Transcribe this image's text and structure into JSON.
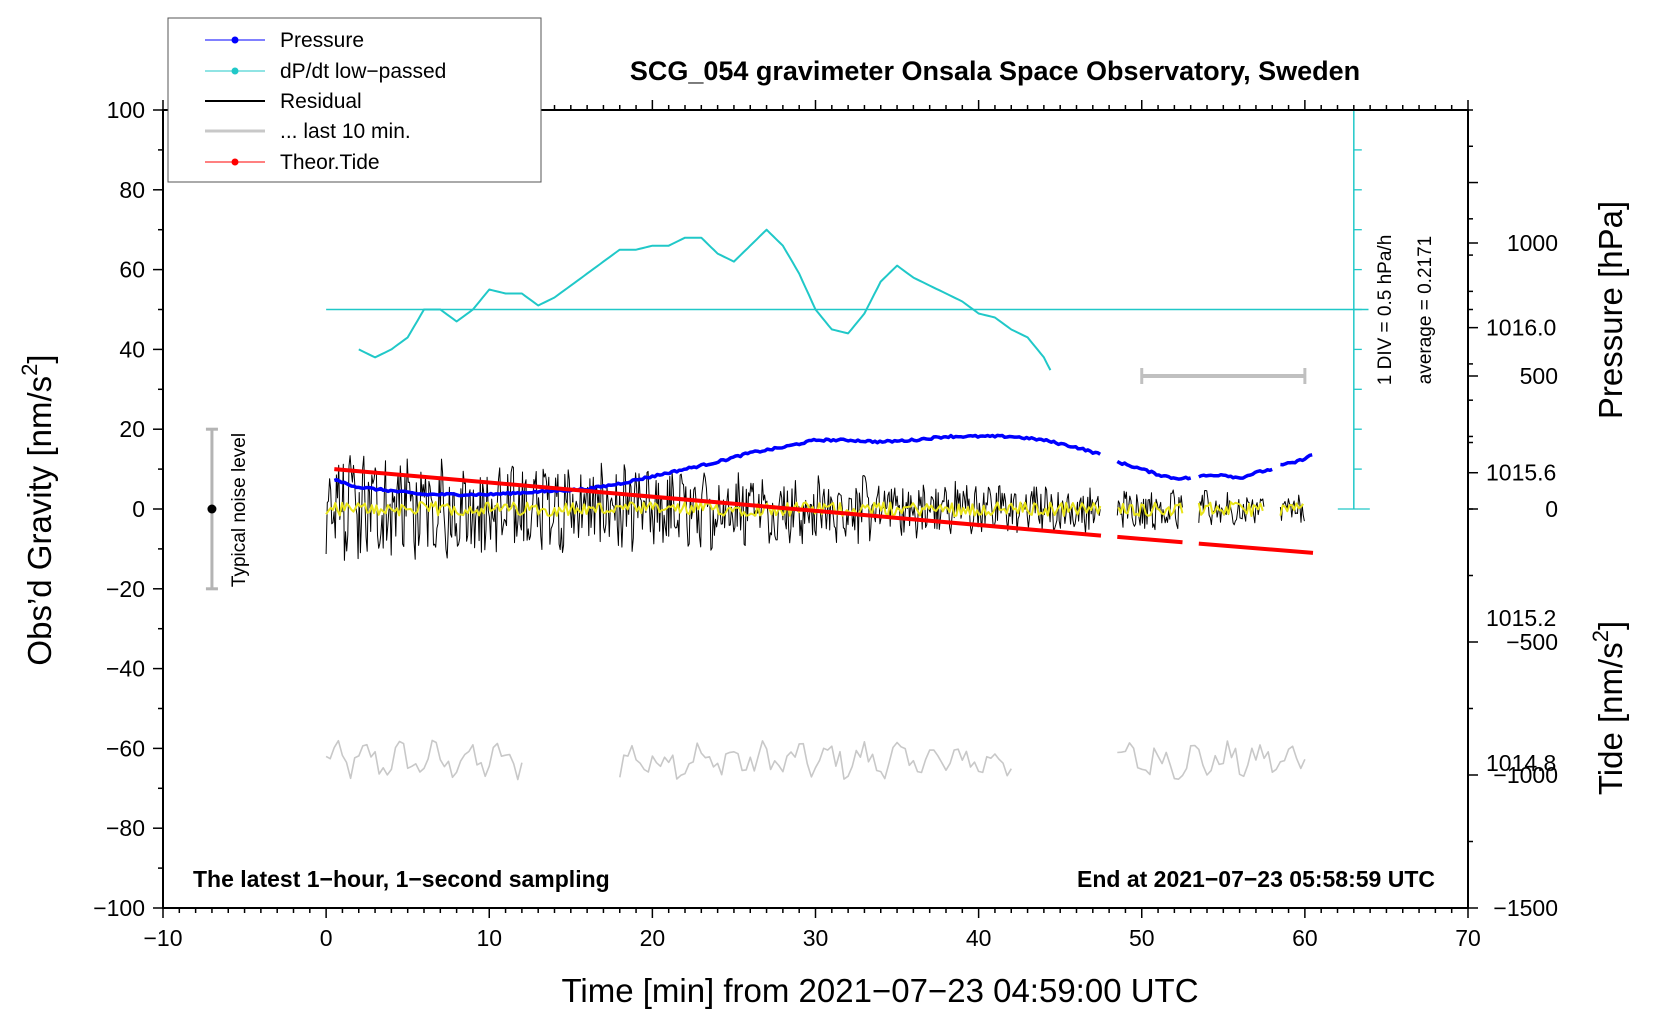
{
  "chart_data": {
    "type": "line",
    "title": "SCG_054 gravimeter Onsala Space Observatory, Sweden",
    "xlabel": "Time [min] from 2021−07−23 04:59:00 UTC",
    "ylabel": "Obs’d Gravity [nm/s",
    "ylabel_sup": "2",
    "ylabel_close": "]",
    "y2label": "Pressure [hPa]",
    "y3label": "Tide [nm/s",
    "y3label_sup": "2",
    "y3label_close": "]",
    "xlim": [
      -10,
      70
    ],
    "ylim": [
      -100,
      100
    ],
    "pressure_lim": [
      1014.4,
      1016.6
    ],
    "tide_lim": [
      -1500,
      1500
    ],
    "x_ticks": [
      -10,
      0,
      10,
      20,
      30,
      40,
      50,
      60,
      70
    ],
    "x_tick_labels": [
      "−10",
      "0",
      "10",
      "20",
      "30",
      "40",
      "50",
      "60",
      "70"
    ],
    "y_ticks": [
      -100,
      -80,
      -60,
      -40,
      -20,
      0,
      20,
      40,
      60,
      80,
      100
    ],
    "y_tick_labels": [
      "−100",
      "−80",
      "−60",
      "−40",
      "−20",
      "0",
      "20",
      "40",
      "60",
      "80",
      "100"
    ],
    "pressure_ticks": [
      1014.8,
      1015.2,
      1015.6,
      1016.0
    ],
    "pressure_tick_labels": [
      "1014.8",
      "1015.2",
      "1015.6",
      "1016.0"
    ],
    "tide_ticks": [
      -1500,
      -1000,
      -500,
      0,
      500,
      1000
    ],
    "tide_tick_labels": [
      "−1500",
      "−1000",
      "−500",
      "0",
      "500",
      "1000"
    ],
    "legend": {
      "placement": "top-left",
      "entries": [
        "Pressure",
        "dP/dt low−passed",
        "Residual",
        "... last 10 min.",
        "Theor.Tide"
      ]
    },
    "annotations": {
      "noise_label": "Typical noise level",
      "noise_range": [
        -20,
        20
      ],
      "noise_x": -7,
      "div_label": "1 DIV = 0.5 hPa/h",
      "avg_label": "average = 0.2171",
      "bottom_left": "The latest 1−hour, 1−second sampling",
      "bottom_right": "End at 2021−07−23 05:58:59 UTC",
      "scale_bar_x": [
        50,
        60
      ],
      "scale_bar_tide": 500,
      "dpdt_zero_y": 50,
      "dpdt_scale_x": 63,
      "dpdt_scale_range": [
        0,
        100
      ]
    },
    "series": [
      {
        "name": "Pressure",
        "color": "#0000ff",
        "units": "hPa",
        "segments": [
          {
            "x": [
              0.5,
              2,
              4,
              6,
              8,
              10,
              12,
              14,
              16,
              18,
              20,
              22,
              24,
              26,
              28,
              30,
              32,
              34,
              36,
              38,
              40,
              42,
              44,
              46,
              47.5
            ],
            "values": [
              1015.58,
              1015.56,
              1015.55,
              1015.54,
              1015.54,
              1015.54,
              1015.545,
              1015.55,
              1015.555,
              1015.57,
              1015.59,
              1015.61,
              1015.63,
              1015.655,
              1015.67,
              1015.69,
              1015.69,
              1015.685,
              1015.69,
              1015.7,
              1015.7,
              1015.7,
              1015.69,
              1015.67,
              1015.65
            ]
          },
          {
            "x": [
              48.5,
              50,
              51,
              52,
              53
            ],
            "values": [
              1015.63,
              1015.61,
              1015.595,
              1015.585,
              1015.585
            ]
          },
          {
            "x": [
              53.5,
              55,
              56,
              57,
              58
            ],
            "values": [
              1015.59,
              1015.595,
              1015.585,
              1015.6,
              1015.61
            ]
          },
          {
            "x": [
              58.5,
              59.5,
              60.5
            ],
            "values": [
              1015.62,
              1015.63,
              1015.65
            ]
          }
        ]
      },
      {
        "name": "dP/dt low−passed",
        "color": "#20c8c8",
        "x": [
          2,
          3,
          4,
          5,
          6,
          7,
          8,
          9,
          10,
          11,
          12,
          13,
          14,
          15,
          16,
          17,
          18,
          19,
          20,
          21,
          22,
          23,
          24,
          25,
          26,
          27,
          28,
          29,
          30,
          31,
          32,
          33,
          34,
          35,
          36,
          37,
          38,
          39,
          40,
          41,
          42,
          43,
          44,
          44.5
        ],
        "values": [
          40,
          38,
          40,
          43,
          50,
          50,
          47,
          50,
          55,
          54,
          54,
          51,
          53,
          56,
          59,
          62,
          65,
          65,
          66,
          66,
          68,
          68,
          64,
          62,
          66,
          70,
          66,
          59,
          50,
          45,
          44,
          49,
          57,
          61,
          58,
          56,
          54,
          52,
          49,
          48,
          45,
          43,
          38,
          34
        ]
      },
      {
        "name": "Residual",
        "color": "#000000",
        "segments": [
          [
            0,
            47.5
          ],
          [
            48.5,
            52.5
          ],
          [
            53.5,
            57.5
          ],
          [
            58.5,
            60
          ]
        ],
        "amplitude_start": 12,
        "amplitude_end": 3
      },
      {
        "name": "... last 10 min.",
        "color": "#c8c8c8",
        "segments": [
          [
            0,
            12
          ],
          [
            18,
            42
          ],
          [
            48.5,
            60
          ]
        ],
        "baseline": -63,
        "amplitude": 4
      },
      {
        "name": "Theor.Tide",
        "color": "#ff0000",
        "segments": [
          {
            "x": [
              0.5,
              47.5
            ],
            "values": [
              150,
              -100
            ]
          },
          {
            "x": [
              48.5,
              52.5
            ],
            "values": [
              -105,
              -125
            ]
          },
          {
            "x": [
              53.5,
              60.5
            ],
            "values": [
              -130,
              -165
            ]
          }
        ]
      }
    ]
  }
}
